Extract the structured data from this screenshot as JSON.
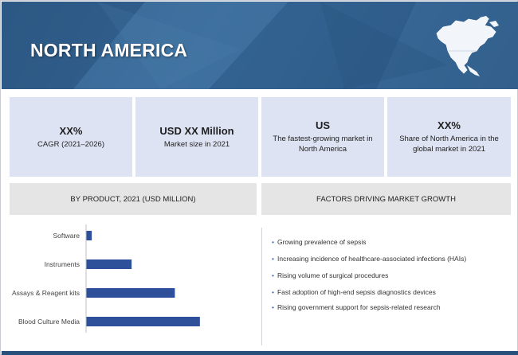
{
  "banner": {
    "title": "NORTH AMERICA",
    "map_icon": "north-america-map-icon",
    "color": "#33628f"
  },
  "stats": [
    {
      "value": "XX%",
      "label": "CAGR (2021–2026)"
    },
    {
      "value": "USD XX Million",
      "label": "Market size in 2021"
    },
    {
      "value": "US",
      "label": "The fastest-growing market in North America"
    },
    {
      "value": "XX%",
      "label": "Share of North America in the global market in 2021"
    }
  ],
  "chart_section": {
    "title": "BY PRODUCT, 2021 (USD MILLION)"
  },
  "factors_section": {
    "title": "FACTORS DRIVING MARKET GROWTH",
    "items": [
      "Growing prevalence of sepsis",
      "Increasing incidence of healthcare-associated infections (HAIs)",
      "Rising volume of surgical procedures",
      "Fast adoption of high-end sepsis diagnostics devices",
      "Rising government support for sepsis-related research"
    ],
    "bullet_color": "#3f6fb5"
  },
  "chart_data": {
    "type": "bar",
    "orientation": "horizontal",
    "categories": [
      "Software",
      "Instruments",
      "Assays & Reagent kits",
      "Blood Culture Media"
    ],
    "values": [
      5,
      40,
      78,
      100
    ],
    "value_scale": "relative (no axis printed)",
    "xlim": [
      0,
      140
    ],
    "grid": false,
    "legend": "none",
    "bar_color": "#2e509a"
  }
}
